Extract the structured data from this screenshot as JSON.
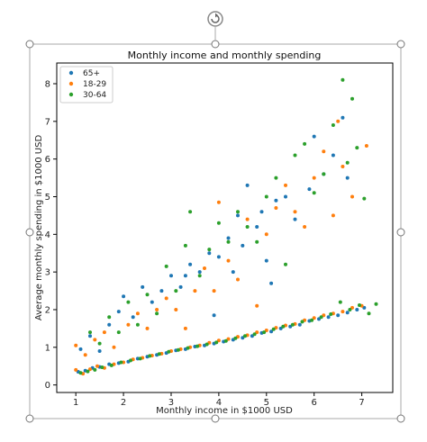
{
  "chart_data": {
    "type": "scatter",
    "title": "Monthly income and monthly spending",
    "xlabel": "Monthly income in $1000 USD",
    "ylabel": "Average monthly spending in $1000 USD",
    "xlim": [
      0.6,
      7.65
    ],
    "ylim": [
      -0.2,
      8.55
    ],
    "xticks": [
      1,
      2,
      3,
      4,
      5,
      6,
      7
    ],
    "yticks": [
      0,
      1,
      2,
      3,
      4,
      5,
      6,
      7,
      8
    ],
    "grid": false,
    "legend_position": "top-left",
    "series": [
      {
        "name": "65+",
        "color": "#1f77b4",
        "points": [
          [
            1.05,
            0.35
          ],
          [
            1.2,
            0.38
          ],
          [
            1.35,
            0.45
          ],
          [
            1.5,
            0.48
          ],
          [
            1.7,
            0.55
          ],
          [
            1.9,
            0.58
          ],
          [
            2.1,
            0.62
          ],
          [
            2.3,
            0.7
          ],
          [
            2.5,
            0.75
          ],
          [
            2.7,
            0.8
          ],
          [
            2.9,
            0.85
          ],
          [
            3.1,
            0.92
          ],
          [
            3.3,
            0.95
          ],
          [
            3.5,
            1.02
          ],
          [
            3.7,
            1.05
          ],
          [
            3.9,
            1.1
          ],
          [
            4.1,
            1.15
          ],
          [
            4.3,
            1.2
          ],
          [
            4.5,
            1.25
          ],
          [
            4.7,
            1.3
          ],
          [
            4.9,
            1.38
          ],
          [
            5.1,
            1.42
          ],
          [
            5.3,
            1.5
          ],
          [
            5.5,
            1.55
          ],
          [
            5.7,
            1.6
          ],
          [
            5.9,
            1.7
          ],
          [
            6.1,
            1.75
          ],
          [
            6.3,
            1.8
          ],
          [
            6.5,
            1.85
          ],
          [
            6.7,
            1.92
          ],
          [
            6.9,
            2.0
          ],
          [
            7.05,
            2.05
          ],
          [
            1.1,
            0.95
          ],
          [
            1.3,
            1.3
          ],
          [
            1.5,
            0.9
          ],
          [
            1.7,
            1.6
          ],
          [
            1.9,
            1.95
          ],
          [
            2.0,
            2.35
          ],
          [
            2.2,
            1.8
          ],
          [
            2.4,
            2.6
          ],
          [
            2.6,
            2.2
          ],
          [
            2.8,
            2.5
          ],
          [
            3.0,
            2.9
          ],
          [
            3.2,
            2.6
          ],
          [
            3.4,
            3.2
          ],
          [
            3.6,
            3.0
          ],
          [
            3.8,
            3.5
          ],
          [
            4.0,
            3.4
          ],
          [
            4.2,
            3.9
          ],
          [
            4.4,
            4.5
          ],
          [
            4.5,
            3.7
          ],
          [
            4.6,
            5.3
          ],
          [
            4.8,
            4.2
          ],
          [
            5.0,
            3.3
          ],
          [
            5.1,
            2.7
          ],
          [
            5.2,
            4.9
          ],
          [
            5.4,
            5.0
          ],
          [
            5.6,
            4.4
          ],
          [
            5.9,
            5.2
          ],
          [
            6.0,
            6.6
          ],
          [
            6.2,
            5.6
          ],
          [
            6.4,
            6.1
          ],
          [
            6.6,
            7.1
          ],
          [
            6.7,
            5.5
          ],
          [
            3.9,
            1.85
          ],
          [
            4.3,
            3.0
          ],
          [
            4.9,
            4.6
          ],
          [
            3.3,
            2.9
          ]
        ]
      },
      {
        "name": "18-29",
        "color": "#ff7f0e",
        "points": [
          [
            1.0,
            0.4
          ],
          [
            1.15,
            0.3
          ],
          [
            1.3,
            0.42
          ],
          [
            1.45,
            0.5
          ],
          [
            1.6,
            0.45
          ],
          [
            1.8,
            0.55
          ],
          [
            2.0,
            0.6
          ],
          [
            2.2,
            0.68
          ],
          [
            2.4,
            0.72
          ],
          [
            2.6,
            0.78
          ],
          [
            2.8,
            0.83
          ],
          [
            3.0,
            0.9
          ],
          [
            3.2,
            0.95
          ],
          [
            3.4,
            1.0
          ],
          [
            3.6,
            1.05
          ],
          [
            3.8,
            1.12
          ],
          [
            4.0,
            1.18
          ],
          [
            4.2,
            1.22
          ],
          [
            4.4,
            1.28
          ],
          [
            4.6,
            1.32
          ],
          [
            4.8,
            1.4
          ],
          [
            5.0,
            1.45
          ],
          [
            5.2,
            1.52
          ],
          [
            5.4,
            1.58
          ],
          [
            5.6,
            1.62
          ],
          [
            5.8,
            1.72
          ],
          [
            6.0,
            1.78
          ],
          [
            6.2,
            1.85
          ],
          [
            6.4,
            1.9
          ],
          [
            6.6,
            1.95
          ],
          [
            6.8,
            2.05
          ],
          [
            7.0,
            2.1
          ],
          [
            1.0,
            1.05
          ],
          [
            1.2,
            0.8
          ],
          [
            1.4,
            1.2
          ],
          [
            1.6,
            1.4
          ],
          [
            1.8,
            1.0
          ],
          [
            2.1,
            1.6
          ],
          [
            2.3,
            1.9
          ],
          [
            2.5,
            1.5
          ],
          [
            2.7,
            2.0
          ],
          [
            2.9,
            2.3
          ],
          [
            3.1,
            2.0
          ],
          [
            3.3,
            1.5
          ],
          [
            3.5,
            2.5
          ],
          [
            3.7,
            3.1
          ],
          [
            3.9,
            2.5
          ],
          [
            4.0,
            4.85
          ],
          [
            4.2,
            3.3
          ],
          [
            4.4,
            2.8
          ],
          [
            4.6,
            4.4
          ],
          [
            4.8,
            2.1
          ],
          [
            5.0,
            4.0
          ],
          [
            5.2,
            4.7
          ],
          [
            5.4,
            5.3
          ],
          [
            5.6,
            4.6
          ],
          [
            5.8,
            4.2
          ],
          [
            6.0,
            5.5
          ],
          [
            6.2,
            6.2
          ],
          [
            6.4,
            4.5
          ],
          [
            6.5,
            7.0
          ],
          [
            6.6,
            5.8
          ],
          [
            6.8,
            5.0
          ],
          [
            7.1,
            6.35
          ]
        ]
      },
      {
        "name": "30-64",
        "color": "#2ca02c",
        "points": [
          [
            1.1,
            0.32
          ],
          [
            1.25,
            0.36
          ],
          [
            1.4,
            0.4
          ],
          [
            1.55,
            0.47
          ],
          [
            1.75,
            0.52
          ],
          [
            1.95,
            0.6
          ],
          [
            2.15,
            0.65
          ],
          [
            2.35,
            0.7
          ],
          [
            2.55,
            0.77
          ],
          [
            2.75,
            0.82
          ],
          [
            2.95,
            0.88
          ],
          [
            3.15,
            0.93
          ],
          [
            3.35,
            0.98
          ],
          [
            3.55,
            1.03
          ],
          [
            3.75,
            1.08
          ],
          [
            3.95,
            1.13
          ],
          [
            4.15,
            1.17
          ],
          [
            4.35,
            1.24
          ],
          [
            4.55,
            1.3
          ],
          [
            4.75,
            1.35
          ],
          [
            4.95,
            1.4
          ],
          [
            5.15,
            1.48
          ],
          [
            5.35,
            1.55
          ],
          [
            5.55,
            1.6
          ],
          [
            5.75,
            1.68
          ],
          [
            5.95,
            1.72
          ],
          [
            6.15,
            1.8
          ],
          [
            6.35,
            1.88
          ],
          [
            6.55,
            2.2
          ],
          [
            6.75,
            2.0
          ],
          [
            6.95,
            2.12
          ],
          [
            7.15,
            1.9
          ],
          [
            7.3,
            2.15
          ],
          [
            1.3,
            1.4
          ],
          [
            1.5,
            1.1
          ],
          [
            1.7,
            1.8
          ],
          [
            1.9,
            1.4
          ],
          [
            2.1,
            2.2
          ],
          [
            2.3,
            1.6
          ],
          [
            2.5,
            2.4
          ],
          [
            2.7,
            1.9
          ],
          [
            2.9,
            3.15
          ],
          [
            3.1,
            2.5
          ],
          [
            3.3,
            3.7
          ],
          [
            3.4,
            4.6
          ],
          [
            3.6,
            2.9
          ],
          [
            3.8,
            3.6
          ],
          [
            4.0,
            4.3
          ],
          [
            4.2,
            3.8
          ],
          [
            4.4,
            4.6
          ],
          [
            4.6,
            4.2
          ],
          [
            4.8,
            3.8
          ],
          [
            5.0,
            5.0
          ],
          [
            5.2,
            5.5
          ],
          [
            5.4,
            3.2
          ],
          [
            5.6,
            6.1
          ],
          [
            5.8,
            6.4
          ],
          [
            6.0,
            5.1
          ],
          [
            6.2,
            5.6
          ],
          [
            6.4,
            6.9
          ],
          [
            6.6,
            8.1
          ],
          [
            6.8,
            7.6
          ],
          [
            6.9,
            6.3
          ],
          [
            7.05,
            4.95
          ],
          [
            6.7,
            5.9
          ]
        ]
      }
    ]
  }
}
